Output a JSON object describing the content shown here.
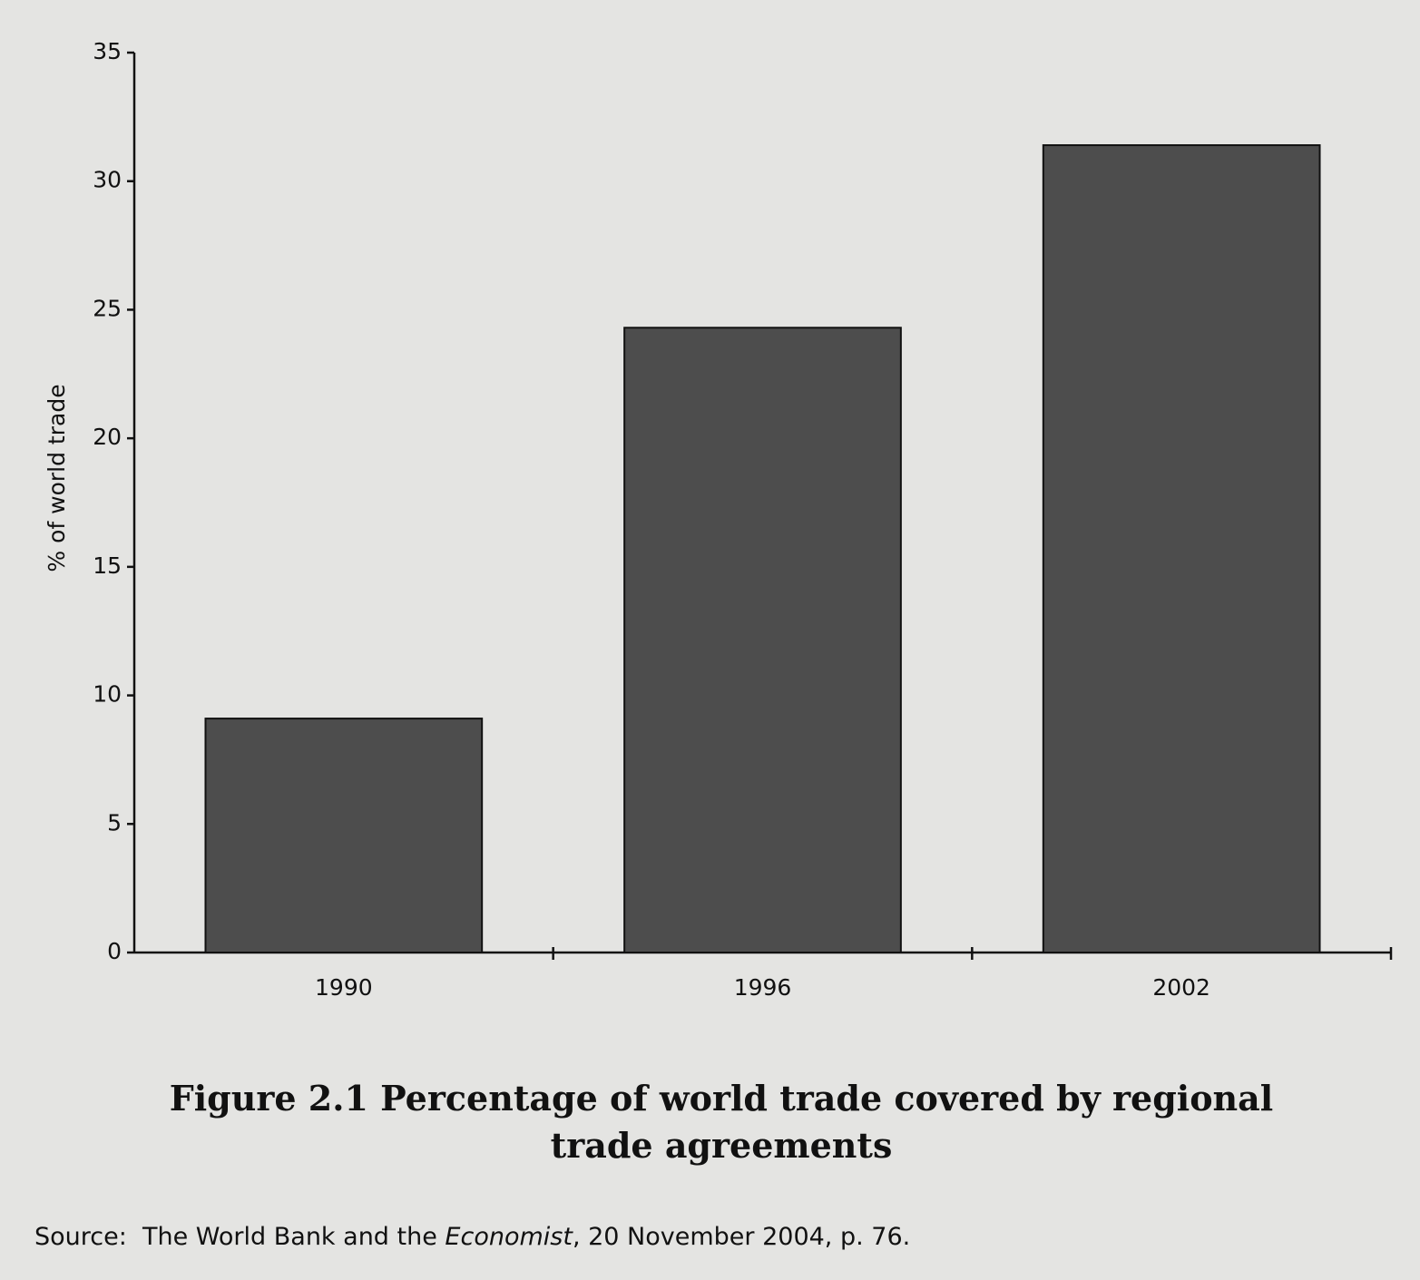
{
  "chart_data": {
    "type": "bar",
    "title": "Figure 2.1  Percentage of world trade covered by regional trade agreements",
    "y_label": "% of world trade",
    "categories": [
      "1990",
      "1996",
      "2002"
    ],
    "values": [
      9.1,
      24.3,
      31.4
    ],
    "color": "#4d4d4d",
    "ylim": [
      0,
      35
    ],
    "yticks": [
      0,
      5,
      10,
      15,
      20,
      25,
      30,
      35
    ],
    "grid": false,
    "source": [
      "Source:  The World Bank and the ",
      "Economist",
      ", 20 November 2004, p. 76."
    ]
  }
}
